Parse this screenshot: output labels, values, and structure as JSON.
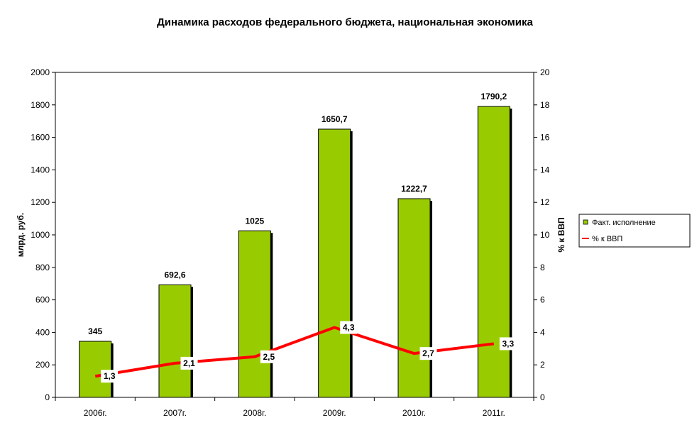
{
  "chart_data": {
    "type": "bar",
    "title": "Динамика расходов федерального бюджета, национальная экономика",
    "categories": [
      "2006г.",
      "2007г.",
      "2008г.",
      "2009г.",
      "2010г.",
      "2011г."
    ],
    "series": [
      {
        "name": "Факт. исполнение",
        "type": "bar",
        "axis": "left",
        "values": [
          345,
          692.6,
          1025,
          1650.7,
          1222.7,
          1790.2
        ],
        "labels": [
          "345",
          "692,6",
          "1025",
          "1650,7",
          "1222,7",
          "1790,2"
        ],
        "color": "#99CC00"
      },
      {
        "name": "% к ВВП",
        "type": "line",
        "axis": "right",
        "values": [
          1.3,
          2.1,
          2.5,
          4.3,
          2.7,
          3.3
        ],
        "labels": [
          "1,3",
          "2,1",
          "2,5",
          "4,3",
          "2,7",
          "3,3"
        ],
        "color": "#FF0000"
      }
    ],
    "ylabel": "млрд. руб.",
    "y2label": "% к ВВП",
    "ylim": [
      0,
      2000
    ],
    "y2lim": [
      0,
      20
    ],
    "yticks": [
      "0",
      "200",
      "400",
      "600",
      "800",
      "1000",
      "1200",
      "1400",
      "1600",
      "1800",
      "2000"
    ],
    "y2ticks": [
      "0",
      "2",
      "4",
      "6",
      "8",
      "10",
      "12",
      "14",
      "16",
      "18",
      "20"
    ],
    "grid": false,
    "legend": "right"
  }
}
